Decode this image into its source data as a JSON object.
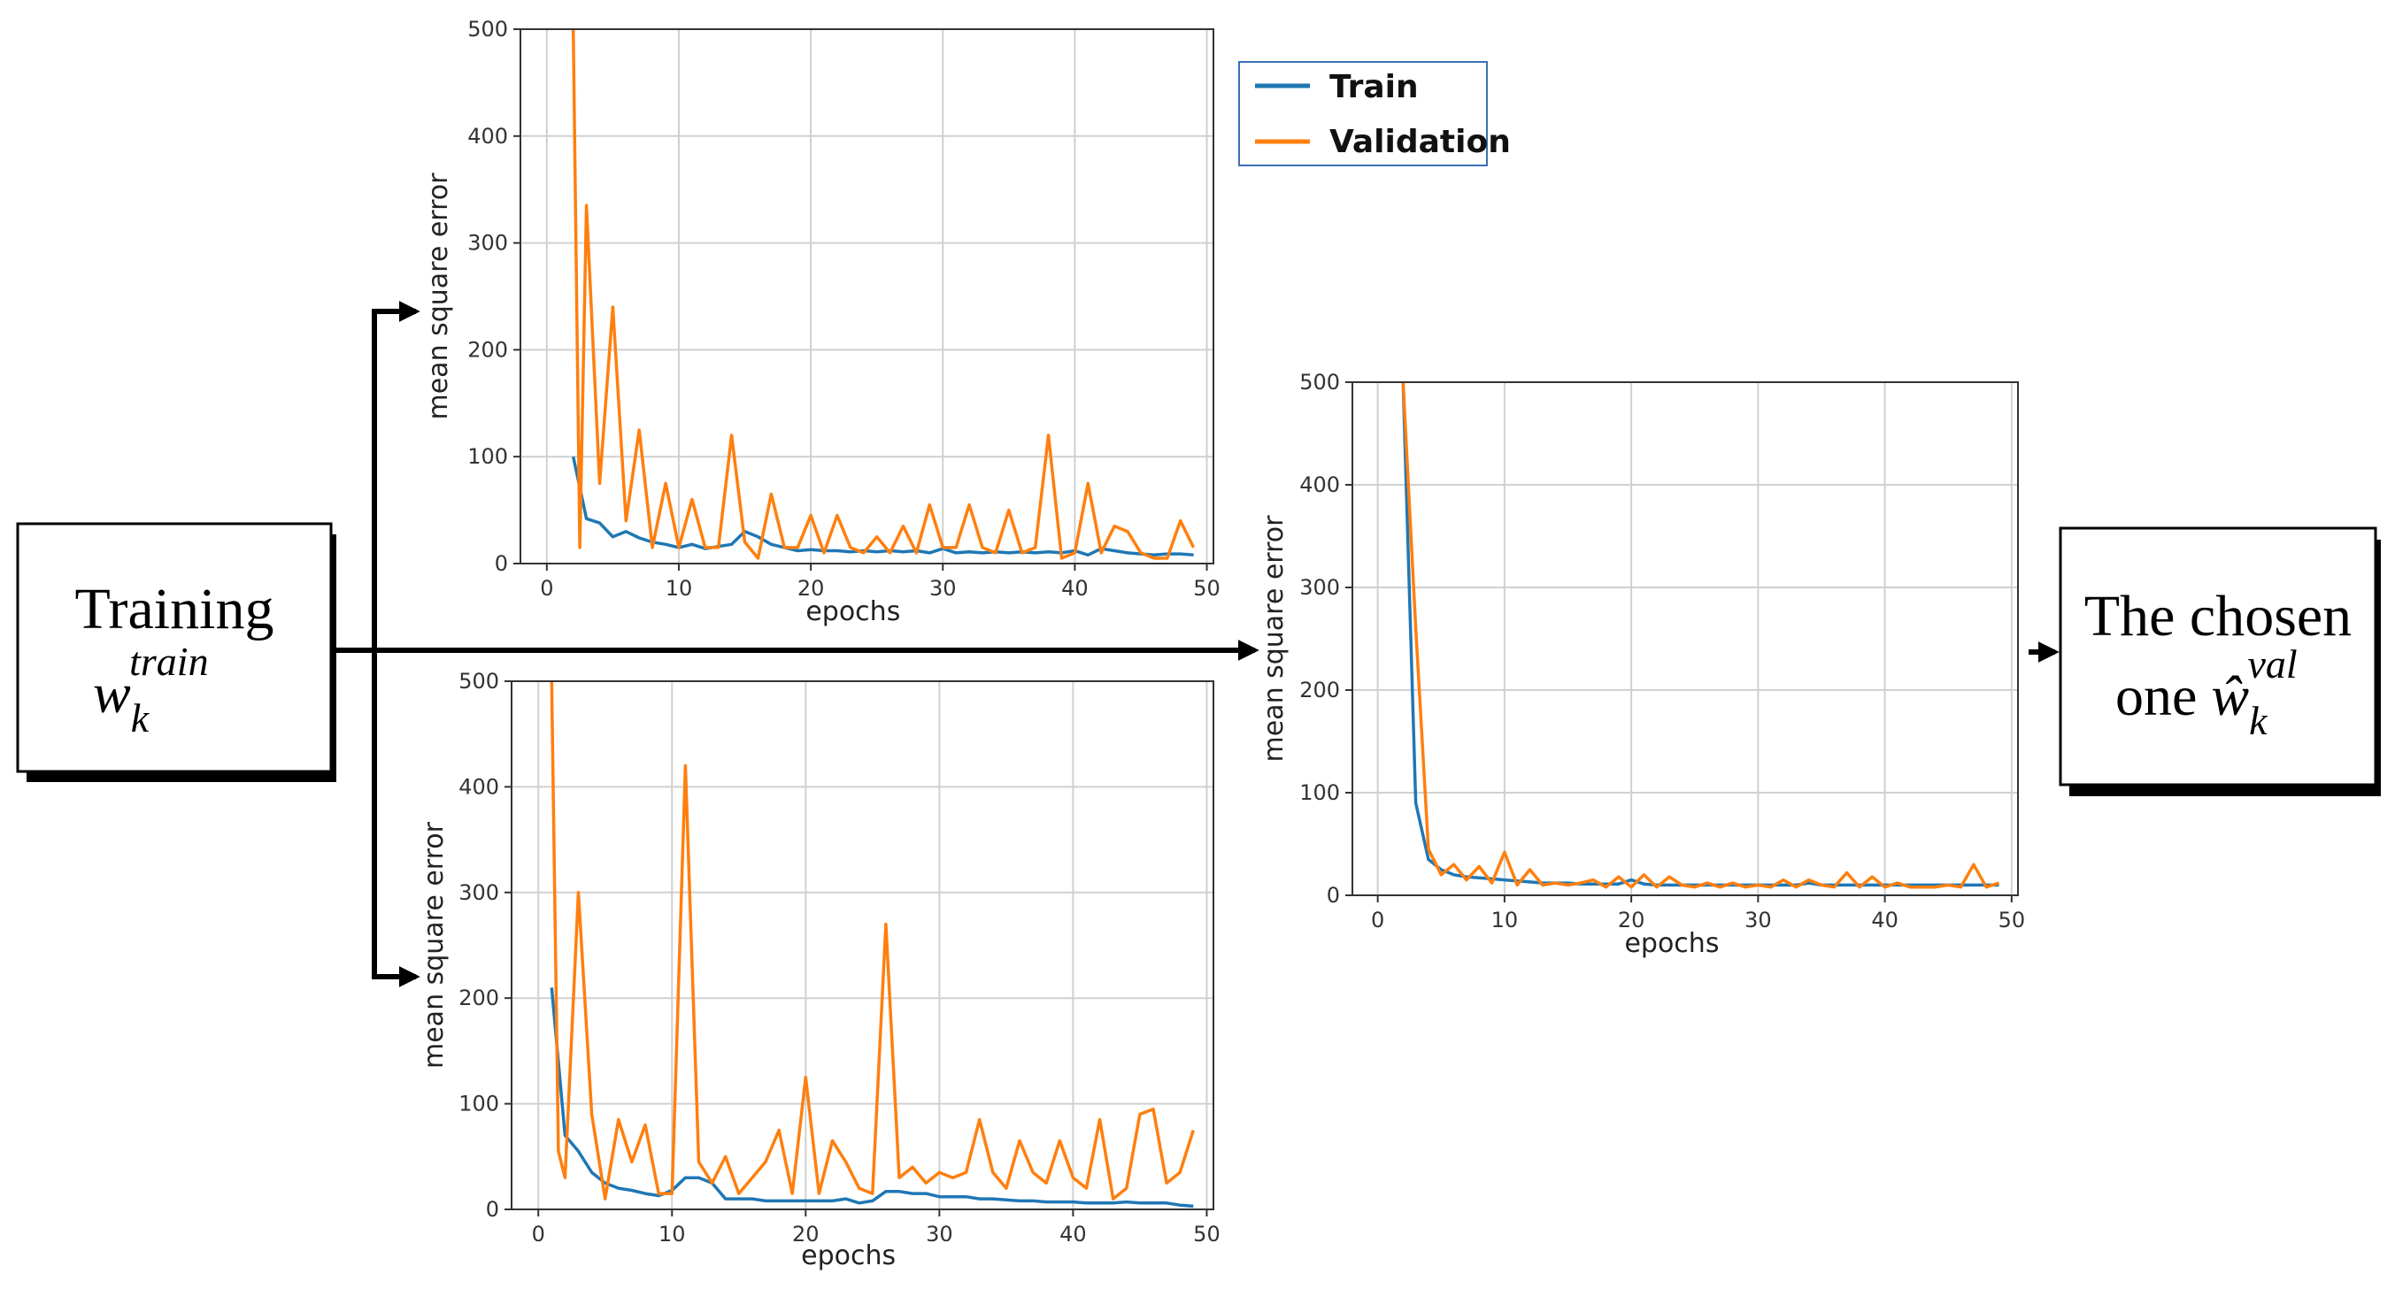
{
  "left_box": {
    "line1": "Training",
    "base": "w",
    "sub": "k",
    "sup": "train"
  },
  "right_box": {
    "line1": "The chosen",
    "prefix": "one ",
    "base": "ŵ",
    "sub": "k",
    "sup": "val"
  },
  "legend": [
    {
      "label": "Train",
      "color": "#1f77b4"
    },
    {
      "label": "Validation",
      "color": "#ff7f0e"
    }
  ],
  "chart_data": [
    {
      "type": "line",
      "id": "top",
      "xlabel": "epochs",
      "ylabel": "mean square error",
      "xlim": [
        -2,
        50.5
      ],
      "ylim": [
        0,
        500
      ],
      "xticks": [
        0,
        10,
        20,
        30,
        40,
        50
      ],
      "yticks": [
        0,
        100,
        200,
        300,
        400,
        500
      ],
      "grid": true,
      "series": [
        {
          "name": "Train",
          "color": "#1f77b4",
          "x": [
            2,
            3,
            4,
            5,
            6,
            7,
            8,
            9,
            10,
            11,
            12,
            13,
            14,
            15,
            16,
            17,
            18,
            19,
            20,
            21,
            22,
            23,
            24,
            25,
            26,
            27,
            28,
            29,
            30,
            31,
            32,
            33,
            34,
            35,
            36,
            37,
            38,
            39,
            40,
            41,
            42,
            43,
            44,
            45,
            46,
            47,
            48,
            49
          ],
          "y": [
            100,
            42,
            38,
            25,
            30,
            24,
            20,
            18,
            15,
            18,
            14,
            16,
            18,
            30,
            25,
            18,
            15,
            12,
            13,
            12,
            12,
            11,
            12,
            11,
            12,
            11,
            12,
            10,
            14,
            10,
            11,
            10,
            11,
            10,
            11,
            10,
            11,
            10,
            12,
            8,
            14,
            12,
            10,
            9,
            8,
            9,
            9,
            8
          ]
        },
        {
          "name": "Validation",
          "color": "#ff7f0e",
          "x": [
            2,
            2.5,
            3,
            4,
            5,
            6,
            7,
            8,
            9,
            10,
            11,
            12,
            13,
            14,
            15,
            16,
            17,
            18,
            19,
            20,
            21,
            22,
            23,
            24,
            25,
            26,
            27,
            28,
            29,
            30,
            31,
            32,
            33,
            34,
            35,
            36,
            37,
            38,
            39,
            40,
            41,
            42,
            43,
            44,
            45,
            46,
            47,
            48,
            49
          ],
          "y": [
            500,
            15,
            335,
            75,
            240,
            40,
            125,
            15,
            75,
            15,
            60,
            15,
            15,
            120,
            20,
            5,
            65,
            15,
            15,
            45,
            10,
            45,
            15,
            10,
            25,
            10,
            35,
            10,
            55,
            15,
            15,
            55,
            15,
            10,
            50,
            10,
            15,
            120,
            5,
            10,
            75,
            10,
            35,
            30,
            10,
            5,
            5,
            40,
            15
          ]
        }
      ]
    },
    {
      "type": "line",
      "id": "bottom",
      "xlabel": "epochs",
      "ylabel": "mean square error",
      "xlim": [
        -2,
        50.5
      ],
      "ylim": [
        0,
        500
      ],
      "xticks": [
        0,
        10,
        20,
        30,
        40,
        50
      ],
      "yticks": [
        0,
        100,
        200,
        300,
        400,
        500
      ],
      "grid": true,
      "series": [
        {
          "name": "Train",
          "color": "#1f77b4",
          "x": [
            1,
            2,
            3,
            4,
            5,
            6,
            7,
            8,
            9,
            10,
            11,
            12,
            13,
            14,
            15,
            16,
            17,
            18,
            19,
            20,
            21,
            22,
            23,
            24,
            25,
            26,
            27,
            28,
            29,
            30,
            31,
            32,
            33,
            34,
            35,
            36,
            37,
            38,
            39,
            40,
            41,
            42,
            43,
            44,
            45,
            46,
            47,
            48,
            49
          ],
          "y": [
            210,
            70,
            55,
            35,
            25,
            20,
            18,
            15,
            13,
            18,
            30,
            30,
            25,
            10,
            10,
            10,
            8,
            8,
            8,
            8,
            8,
            8,
            10,
            6,
            8,
            17,
            17,
            15,
            15,
            12,
            12,
            12,
            10,
            10,
            9,
            8,
            8,
            7,
            7,
            7,
            6,
            6,
            6,
            7,
            6,
            6,
            6,
            4,
            3
          ]
        },
        {
          "name": "Validation",
          "color": "#ff7f0e",
          "x": [
            1,
            1.5,
            2,
            3,
            4,
            5,
            6,
            7,
            8,
            9,
            10,
            11,
            12,
            13,
            14,
            15,
            16,
            17,
            18,
            19,
            20,
            21,
            22,
            23,
            24,
            25,
            26,
            27,
            28,
            29,
            30,
            31,
            32,
            33,
            34,
            35,
            36,
            37,
            38,
            39,
            40,
            41,
            42,
            43,
            44,
            45,
            46,
            47,
            48,
            49
          ],
          "y": [
            500,
            55,
            30,
            300,
            90,
            10,
            85,
            45,
            80,
            15,
            15,
            420,
            45,
            25,
            50,
            15,
            30,
            45,
            75,
            15,
            125,
            15,
            65,
            45,
            20,
            15,
            270,
            30,
            40,
            25,
            35,
            30,
            35,
            85,
            35,
            20,
            65,
            35,
            25,
            65,
            30,
            20,
            85,
            10,
            20,
            90,
            95,
            25,
            35,
            75
          ]
        }
      ]
    },
    {
      "type": "line",
      "id": "right",
      "xlabel": "epochs",
      "ylabel": "mean square error",
      "xlim": [
        -2,
        50.5
      ],
      "ylim": [
        0,
        500
      ],
      "xticks": [
        0,
        10,
        20,
        30,
        40,
        50
      ],
      "yticks": [
        0,
        100,
        200,
        300,
        400,
        500
      ],
      "grid": true,
      "series": [
        {
          "name": "Train",
          "color": "#1f77b4",
          "x": [
            2,
            3,
            4,
            5,
            6,
            7,
            8,
            9,
            10,
            11,
            12,
            13,
            14,
            15,
            16,
            17,
            18,
            19,
            20,
            21,
            22,
            23,
            24,
            25,
            26,
            27,
            28,
            29,
            30,
            31,
            32,
            33,
            34,
            35,
            36,
            37,
            38,
            39,
            40,
            41,
            42,
            43,
            44,
            45,
            46,
            47,
            48,
            49
          ],
          "y": [
            500,
            90,
            35,
            25,
            20,
            18,
            17,
            16,
            15,
            14,
            13,
            12,
            12,
            12,
            11,
            11,
            11,
            11,
            15,
            11,
            10,
            10,
            10,
            10,
            10,
            10,
            10,
            10,
            10,
            10,
            10,
            10,
            12,
            10,
            10,
            10,
            10,
            10,
            10,
            10,
            10,
            10,
            10,
            10,
            10,
            10,
            10,
            10
          ]
        },
        {
          "name": "Validation",
          "color": "#ff7f0e",
          "x": [
            2,
            3,
            4,
            5,
            6,
            7,
            8,
            9,
            10,
            11,
            12,
            13,
            14,
            15,
            16,
            17,
            18,
            19,
            20,
            21,
            22,
            23,
            24,
            25,
            26,
            27,
            28,
            29,
            30,
            31,
            32,
            33,
            34,
            35,
            36,
            37,
            38,
            39,
            40,
            41,
            42,
            43,
            44,
            45,
            46,
            47,
            48,
            49
          ],
          "y": [
            500,
            260,
            45,
            20,
            30,
            15,
            28,
            12,
            42,
            10,
            25,
            10,
            12,
            10,
            12,
            15,
            8,
            18,
            8,
            20,
            8,
            18,
            10,
            8,
            12,
            8,
            12,
            8,
            10,
            8,
            15,
            8,
            15,
            10,
            8,
            22,
            8,
            18,
            8,
            12,
            8,
            8,
            8,
            10,
            8,
            30,
            8,
            12
          ]
        }
      ]
    }
  ]
}
